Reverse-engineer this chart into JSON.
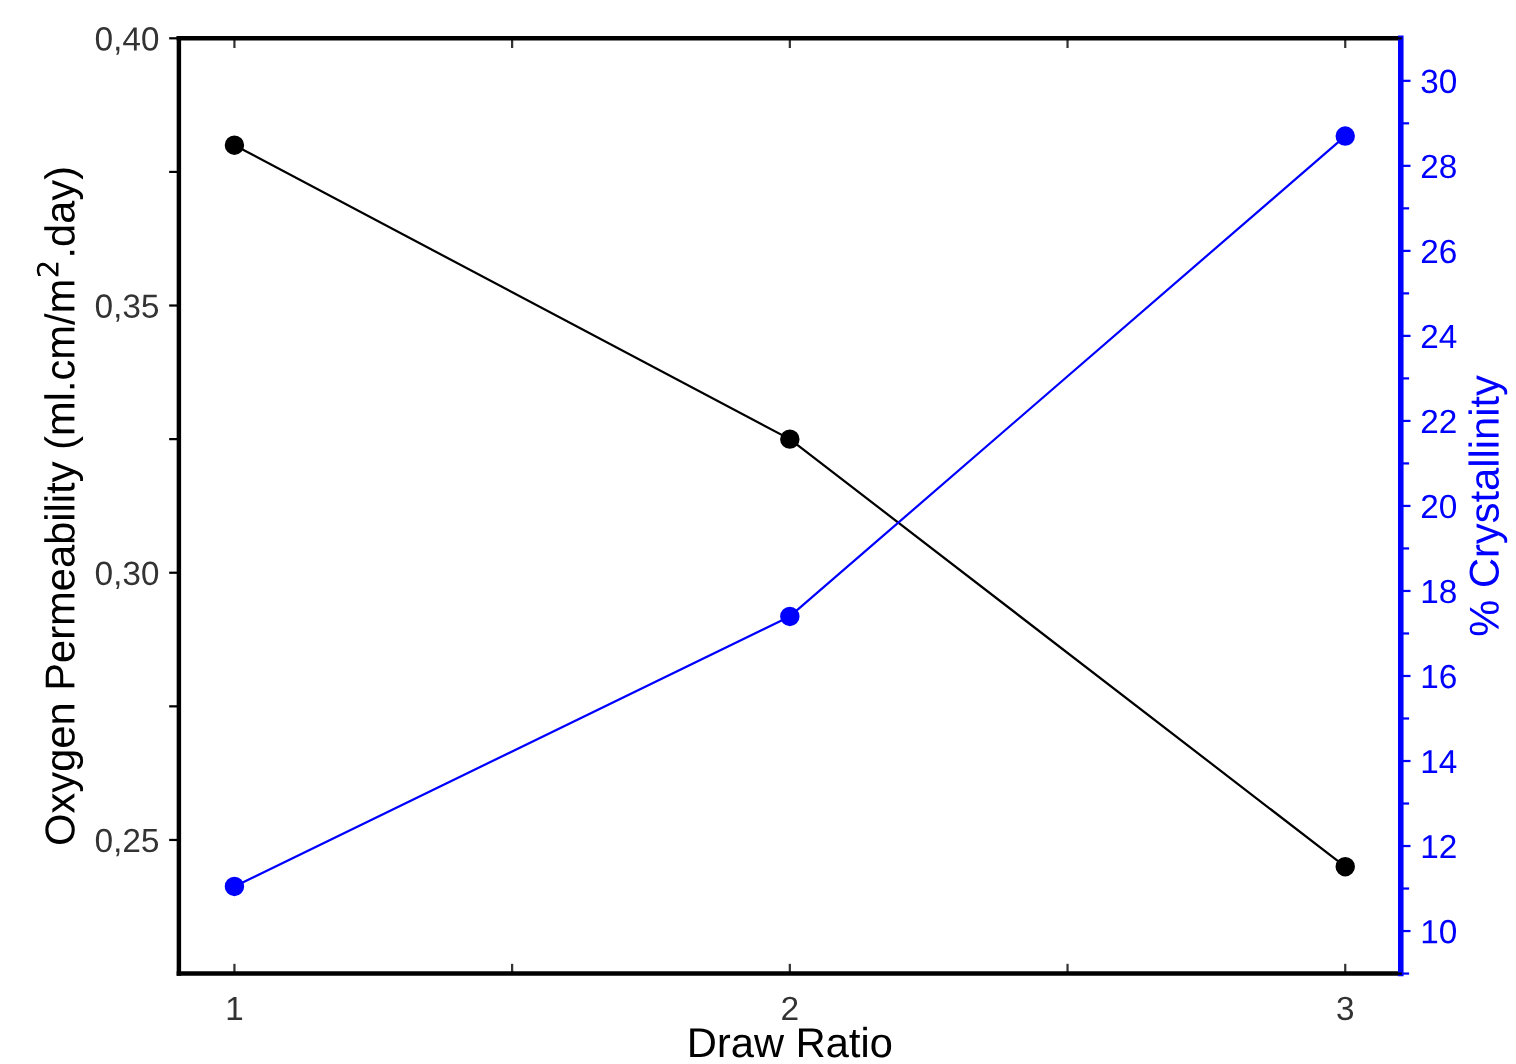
{
  "chart_data": {
    "type": "line",
    "xlabel": "Draw Ratio",
    "ylabel": "Oxygen Permeability (ml.cm/m$^{2}$.day)",
    "y2label": "% Crystallinity",
    "x": [
      1,
      2,
      3
    ],
    "xlim": [
      0.9,
      3.1
    ],
    "xticks": [
      1,
      {
        "value": 1.5,
        "label": null
      },
      2,
      {
        "value": 2.5,
        "label": null
      },
      3
    ],
    "ylim": [
      0.225,
      0.4
    ],
    "yticks": [
      {
        "value": 0.25,
        "label": "0,25"
      },
      {
        "value": 0.275,
        "label": null
      },
      {
        "value": 0.3,
        "label": "0,30"
      },
      {
        "value": 0.325,
        "label": null
      },
      {
        "value": 0.35,
        "label": "0,35"
      },
      {
        "value": 0.375,
        "label": null
      },
      {
        "value": 0.4,
        "label": "0,40"
      }
    ],
    "y2lim": [
      9,
      31
    ],
    "y2ticks": [
      {
        "value": 9,
        "label": null
      },
      10,
      {
        "value": 11,
        "label": null
      },
      12,
      {
        "value": 13,
        "label": null
      },
      14,
      {
        "value": 15,
        "label": null
      },
      16,
      {
        "value": 17,
        "label": null
      },
      18,
      {
        "value": 19,
        "label": null
      },
      20,
      {
        "value": 21,
        "label": null
      },
      22,
      {
        "value": 23,
        "label": null
      },
      24,
      {
        "value": 25,
        "label": null
      },
      26,
      {
        "value": 27,
        "label": null
      },
      28,
      {
        "value": 29,
        "label": null
      },
      30
    ],
    "marker": "circle",
    "line_style": "solid",
    "grid": false,
    "legend": false,
    "series": [
      {
        "color": "#000000",
        "values": [
          0.38,
          0.325,
          0.245
        ]
      },
      {
        "color": "#0000ff",
        "axis": "y2",
        "values": [
          11.05,
          17.4,
          28.7
        ]
      }
    ]
  }
}
